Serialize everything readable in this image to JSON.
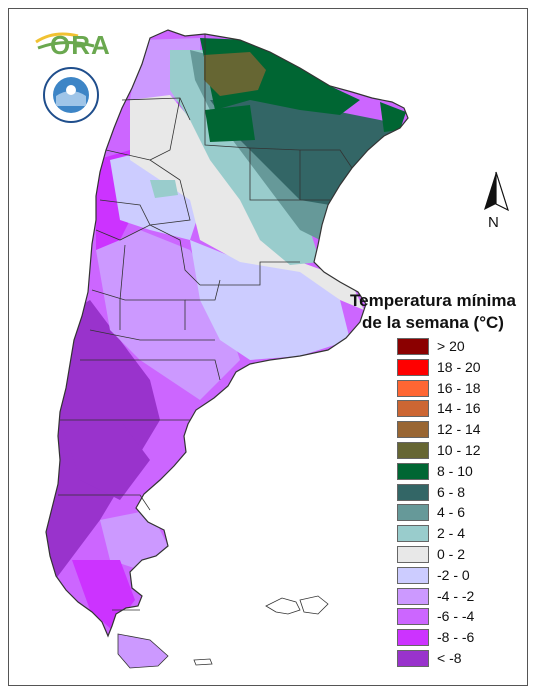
{
  "logo": {
    "text": "ORA",
    "color": "#6aa84f"
  },
  "seal_text": "SERVICIO METEOROLÓGICO NACIONAL · ARGENTINA",
  "north_label": "N",
  "legend": {
    "title_line1": "Temperatura mínima",
    "title_line2": "de la semana (°C)",
    "items": [
      {
        "label": "> 20",
        "color": "#8b0000"
      },
      {
        "label": "18 - 20",
        "color": "#ff0000"
      },
      {
        "label": "16 - 18",
        "color": "#ff6633"
      },
      {
        "label": "14 - 16",
        "color": "#cc6633"
      },
      {
        "label": "12 - 14",
        "color": "#996633"
      },
      {
        "label": "10 - 12",
        "color": "#666633"
      },
      {
        "label": "8 - 10",
        "color": "#006633"
      },
      {
        "label": "6 - 8",
        "color": "#336666"
      },
      {
        "label": "4 - 6",
        "color": "#669999"
      },
      {
        "label": "2 - 4",
        "color": "#99cccc"
      },
      {
        "label": "0 - 2",
        "color": "#e8e8e8"
      },
      {
        "label": "-2 - 0",
        "color": "#ccccff"
      },
      {
        "label": "-4 - -2",
        "color": "#cc99ff"
      },
      {
        "label": "-6 - -4",
        "color": "#cc66ff"
      },
      {
        "label": "-8 - -6",
        "color": "#cc33ff"
      },
      {
        "label": "< -8",
        "color": "#9933cc"
      }
    ]
  }
}
